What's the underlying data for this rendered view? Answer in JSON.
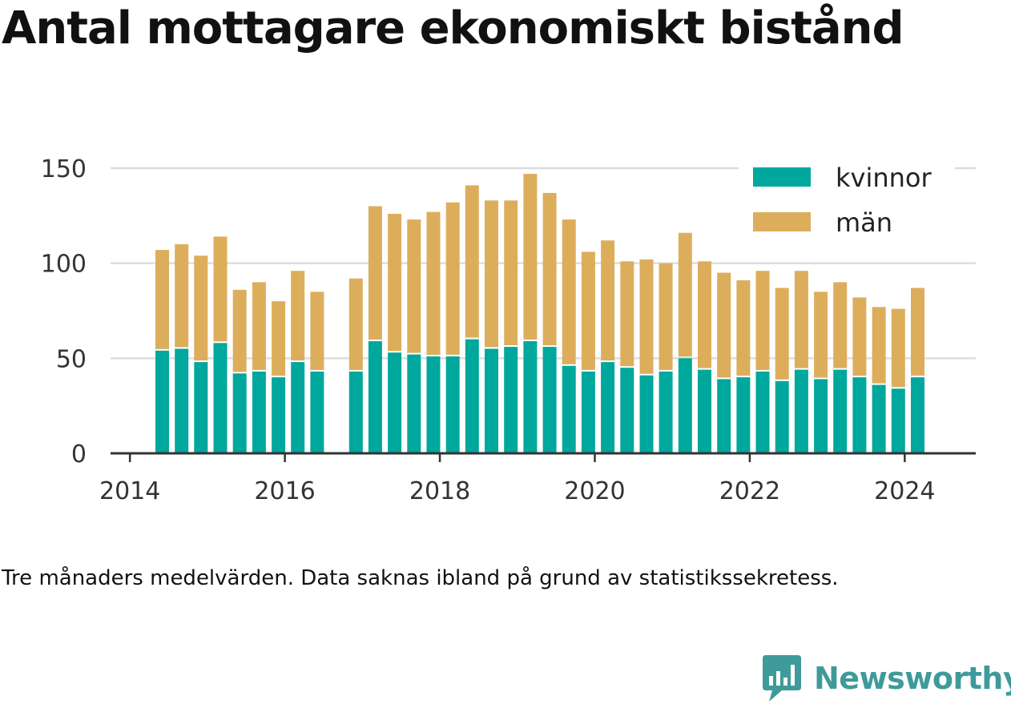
{
  "title": "Antal mottagare ekonomiskt bistånd",
  "note": "Tre månaders medelvärden. Data saknas ibland på grund av statistikssekretess.",
  "brand": {
    "name": "Newsworthy"
  },
  "colors": {
    "kvinnor": "#00a79d",
    "man": "#dcae5c",
    "grid": "#dddddd",
    "axis": "#333333",
    "brand": "#3f9a9a"
  },
  "chart_data": {
    "type": "bar",
    "stacked": true,
    "x": [
      "2014-06",
      "2014-09",
      "2014-12",
      "2015-03",
      "2015-06",
      "2015-09",
      "2015-12",
      "2016-03",
      "2016-06",
      "2016-12",
      "2017-03",
      "2017-06",
      "2017-09",
      "2017-12",
      "2018-03",
      "2018-06",
      "2018-09",
      "2018-12",
      "2019-03",
      "2019-06",
      "2019-09",
      "2019-12",
      "2020-03",
      "2020-06",
      "2020-09",
      "2020-12",
      "2021-03",
      "2021-06",
      "2021-09",
      "2021-12",
      "2022-03",
      "2022-06",
      "2022-09",
      "2022-12",
      "2023-03",
      "2023-06",
      "2023-09",
      "2023-12",
      "2024-03"
    ],
    "series": [
      {
        "name": "kvinnor",
        "values": [
          54,
          55,
          48,
          58,
          42,
          43,
          40,
          48,
          43,
          43,
          59,
          53,
          52,
          51,
          51,
          60,
          55,
          56,
          59,
          56,
          46,
          43,
          48,
          45,
          41,
          43,
          50,
          44,
          39,
          40,
          43,
          38,
          44,
          39,
          44,
          40,
          36,
          34,
          40
        ]
      },
      {
        "name": "män",
        "values": [
          53,
          55,
          56,
          56,
          44,
          47,
          40,
          48,
          42,
          49,
          71,
          73,
          71,
          76,
          81,
          81,
          78,
          77,
          88,
          81,
          77,
          63,
          64,
          56,
          61,
          57,
          66,
          57,
          56,
          51,
          53,
          49,
          52,
          46,
          46,
          42,
          41,
          42,
          47
        ]
      }
    ],
    "xlim": [
      "2013-10",
      "2024-12"
    ],
    "ylim": [
      0,
      150
    ],
    "yticks": [
      0,
      50,
      100,
      150
    ],
    "xticks": [
      "2014",
      "2016",
      "2018",
      "2020",
      "2022",
      "2024"
    ],
    "grid": true,
    "legend": "top-right"
  }
}
